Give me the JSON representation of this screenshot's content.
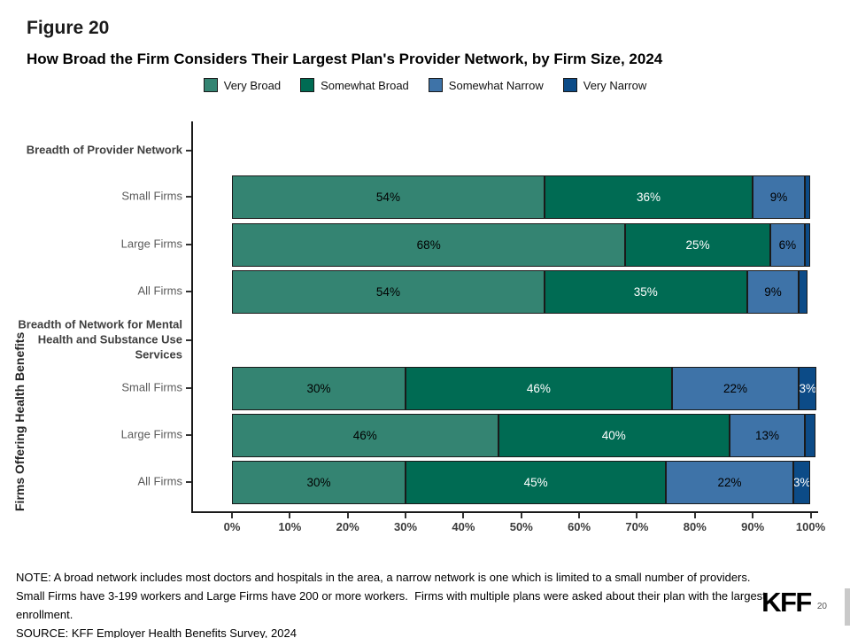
{
  "figure_label": "Figure 20",
  "notes": {
    "line1": "NOTE: A broad network includes most doctors and hospitals in the area, a narrow network is one which is limited to a small number of providers.",
    "line2": "Small Firms have 3-199 workers and Large Firms have 200 or more workers.  Firms with multiple plans were asked about their plan with the largest",
    "line3": "enrollment.",
    "source": "SOURCE: KFF Employer Health Benefits Survey, 2024"
  },
  "footer": {
    "logo_text": "KFF",
    "page_number": "20"
  },
  "chart_data": {
    "type": "bar",
    "orientation": "horizontal",
    "stacked": true,
    "grid": false,
    "legend_position": "top",
    "title": "How Broad the Firm Considers Their Largest Plan's Provider Network, by Firm Size, 2024",
    "ylabel": "Firms Offering Health Benefits",
    "xlim": [
      0,
      100
    ],
    "x_ticks": [
      "0%",
      "10%",
      "20%",
      "30%",
      "40%",
      "50%",
      "60%",
      "70%",
      "80%",
      "90%",
      "100%"
    ],
    "series_names": [
      "Very Broad",
      "Somewhat Broad",
      "Somewhat Narrow",
      "Very Narrow"
    ],
    "series_colors": [
      "#348472",
      "#006B53",
      "#3E73A8",
      "#0C4B87"
    ],
    "series_label_text_colors": [
      "#000000",
      "#FFFFFF",
      "#000000",
      "#FFFFFF"
    ],
    "groups": [
      {
        "header": "Breadth of Provider Network",
        "rows": [
          {
            "label": "Small Firms",
            "values": [
              54,
              36,
              9,
              1
            ],
            "value_labels": [
              "54%",
              "36%",
              "9%",
              ""
            ]
          },
          {
            "label": "Large Firms",
            "values": [
              68,
              25,
              6,
              1
            ],
            "value_labels": [
              "68%",
              "25%",
              "6%",
              ""
            ]
          },
          {
            "label": "All Firms",
            "values": [
              54,
              35,
              9,
              1.5
            ],
            "value_labels": [
              "54%",
              "35%",
              "9%",
              ""
            ]
          }
        ]
      },
      {
        "header": "Breadth of Network for Mental Health and Substance Use Services",
        "rows": [
          {
            "label": "Small Firms",
            "values": [
              30,
              46,
              22,
              3
            ],
            "value_labels": [
              "30%",
              "46%",
              "22%",
              "3%"
            ]
          },
          {
            "label": "Large Firms",
            "values": [
              46,
              40,
              13,
              1.8
            ],
            "value_labels": [
              "46%",
              "40%",
              "13%",
              ""
            ]
          },
          {
            "label": "All Firms",
            "values": [
              30,
              45,
              22,
              3
            ],
            "value_labels": [
              "30%",
              "45%",
              "22%",
              "3%"
            ]
          }
        ]
      }
    ]
  }
}
